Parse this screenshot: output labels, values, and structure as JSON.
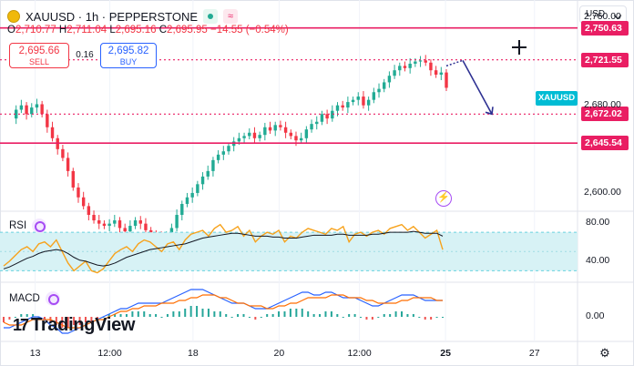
{
  "header": {
    "symbol_line": "XAUUSD · 1h · PEPPERSTONE",
    "ohlc": {
      "o_label": "O",
      "o": "2,710.77",
      "h_label": "H",
      "h": "2,711.04",
      "l_label": "L",
      "l": "2,695.16",
      "c_label": "C",
      "c": "2,695.95",
      "change": "−14.55 (−0.54%)"
    }
  },
  "trade": {
    "sell_price": "2,695.66",
    "sell_label": "SELL",
    "spread": "0.16",
    "buy_price": "2,695.82",
    "buy_label": "BUY"
  },
  "currency_button": "USD",
  "symbol_tag": "XAUUSD",
  "logo_text": "TradingView",
  "colors": {
    "up": "#22ab94",
    "down": "#f23645",
    "level": "#e91e63",
    "trend": "#2e3192",
    "rsi": "#f7a21b",
    "rsi_ma": "#131722",
    "rsi_band": "#d7f2f5",
    "macd": "#2962ff",
    "signal": "#ff6d00"
  },
  "chart_data": [
    {
      "type": "candlestick",
      "title": "",
      "ylim": [
        2585,
        2772
      ],
      "price_ticks": [
        "2,760.00",
        "2,680.00",
        "2,600.00"
      ],
      "price_tick_values": [
        2760,
        2680,
        2600
      ],
      "x_ticks": [
        "13",
        "12:00",
        "18",
        "20",
        "12:00",
        "25",
        "27"
      ],
      "x_tick_positions": [
        0.055,
        0.185,
        0.33,
        0.48,
        0.62,
        0.77,
        0.925
      ],
      "levels": [
        {
          "label": "2,750.63",
          "value": 2750.63,
          "style": "solid"
        },
        {
          "label": "2,721.55",
          "value": 2721.55,
          "style": "dotted"
        },
        {
          "label": "2,672.02",
          "value": 2672.02,
          "style": "dotted"
        },
        {
          "label": "2,645.54",
          "value": 2645.54,
          "style": "solid"
        }
      ],
      "path": [
        2668,
        2676,
        2680,
        2672,
        2678,
        2681,
        2672,
        2660,
        2650,
        2640,
        2632,
        2620,
        2605,
        2596,
        2588,
        2580,
        2575,
        2572,
        2570,
        2572,
        2575,
        2568,
        2565,
        2570,
        2575,
        2572,
        2566,
        2562,
        2560,
        2558,
        2562,
        2568,
        2580,
        2590,
        2596,
        2600,
        2608,
        2615,
        2620,
        2630,
        2635,
        2638,
        2643,
        2647,
        2650,
        2652,
        2655,
        2650,
        2653,
        2660,
        2657,
        2662,
        2660,
        2655,
        2652,
        2648,
        2650,
        2658,
        2663,
        2665,
        2672,
        2668,
        2675,
        2680,
        2678,
        2683,
        2685,
        2688,
        2680,
        2685,
        2692,
        2695,
        2701,
        2707,
        2712,
        2716,
        2714,
        2718,
        2720,
        2721,
        2719,
        2712,
        2708,
        2710,
        2696
      ],
      "projection": {
        "from": 2721,
        "to": 2672
      }
    },
    {
      "type": "line",
      "name": "RSI",
      "title": "RSI",
      "ylim": [
        20,
        90
      ],
      "ticks": [
        "80.00",
        "40.00"
      ],
      "tick_values": [
        80,
        40
      ],
      "band": [
        30,
        70
      ],
      "series": [
        {
          "name": "",
          "values": [
            35,
            40,
            46,
            52,
            55,
            50,
            58,
            60,
            55,
            62,
            50,
            38,
            30,
            35,
            40,
            30,
            28,
            32,
            40,
            48,
            52,
            55,
            50,
            58,
            62,
            60,
            55,
            50,
            58,
            60,
            52,
            62,
            68,
            70,
            72,
            66,
            74,
            78,
            70,
            72,
            76,
            66,
            72,
            60,
            66,
            70,
            68,
            72,
            60,
            66,
            64,
            70,
            74,
            72,
            70,
            68,
            74,
            72,
            76,
            60,
            68,
            70,
            66,
            70,
            72,
            68,
            74,
            76,
            78,
            72,
            76,
            70,
            64,
            68,
            72,
            52
          ]
        },
        {
          "name": "",
          "values": [
            32,
            34,
            37,
            40,
            43,
            45,
            48,
            50,
            51,
            52,
            51,
            48,
            44,
            41,
            40,
            38,
            36,
            35,
            36,
            38,
            41,
            44,
            46,
            48,
            50,
            52,
            53,
            54,
            55,
            56,
            57,
            58,
            60,
            62,
            64,
            65,
            66,
            67,
            68,
            69,
            69,
            68,
            67,
            66,
            66,
            66,
            65,
            65,
            64,
            64,
            64,
            65,
            66,
            67,
            67,
            67,
            67,
            68,
            68,
            67,
            67,
            67,
            67,
            68,
            68,
            69,
            70,
            70,
            70,
            70,
            71,
            70,
            69,
            69,
            69,
            66
          ]
        }
      ]
    },
    {
      "type": "bar",
      "name": "MACD",
      "title": "MACD",
      "ylim": [
        -8,
        12
      ],
      "ticks": [
        "0.00"
      ],
      "tick_values": [
        0
      ],
      "series": [
        {
          "name": "",
          "values": [
            -2,
            -1,
            0,
            1,
            1,
            1,
            0,
            -1,
            -2,
            -3,
            -4,
            -4,
            -3,
            -3,
            -2,
            -2,
            -1,
            0,
            1,
            1,
            1,
            1,
            2,
            2,
            2,
            1,
            1,
            0,
            1,
            2,
            2,
            3,
            4,
            4,
            3,
            3,
            2,
            2,
            1,
            0,
            1,
            1,
            0,
            -1,
            0,
            1,
            1,
            2,
            2,
            3,
            3,
            3,
            2,
            1,
            1,
            2,
            2,
            1,
            0,
            1,
            1,
            0,
            -1,
            -1,
            0,
            1,
            1,
            2,
            2,
            1,
            1,
            0,
            -1,
            -1,
            0,
            0
          ]
        },
        {
          "name": "",
          "values": [
            -4,
            -4,
            -3,
            -2,
            -1,
            0,
            0,
            -1,
            -3,
            -4,
            -6,
            -6,
            -5,
            -4,
            -3,
            -2,
            -1,
            0,
            1,
            2,
            3,
            3,
            4,
            5,
            5,
            5,
            5,
            5,
            6,
            7,
            8,
            9,
            10,
            10,
            10,
            9,
            8,
            7,
            6,
            5,
            5,
            5,
            4,
            3,
            3,
            3,
            4,
            5,
            6,
            7,
            8,
            9,
            9,
            8,
            8,
            9,
            9,
            8,
            7,
            7,
            7,
            6,
            5,
            4,
            4,
            5,
            6,
            7,
            8,
            8,
            8,
            7,
            6,
            6,
            6,
            6
          ]
        },
        {
          "name": "",
          "values": [
            -2,
            -3,
            -3,
            -3,
            -2,
            -1,
            -1,
            -1,
            -1,
            -2,
            -3,
            -4,
            -4,
            -4,
            -3,
            -2,
            -1,
            -1,
            0,
            1,
            2,
            2,
            3,
            3,
            4,
            4,
            4,
            5,
            5,
            5,
            6,
            6,
            7,
            7,
            8,
            8,
            8,
            7,
            7,
            6,
            5,
            5,
            4,
            4,
            4,
            3,
            3,
            4,
            4,
            5,
            5,
            6,
            7,
            7,
            7,
            7,
            8,
            8,
            8,
            7,
            7,
            7,
            6,
            6,
            5,
            5,
            5,
            5,
            6,
            6,
            7,
            7,
            7,
            7,
            6,
            6
          ]
        }
      ]
    }
  ]
}
